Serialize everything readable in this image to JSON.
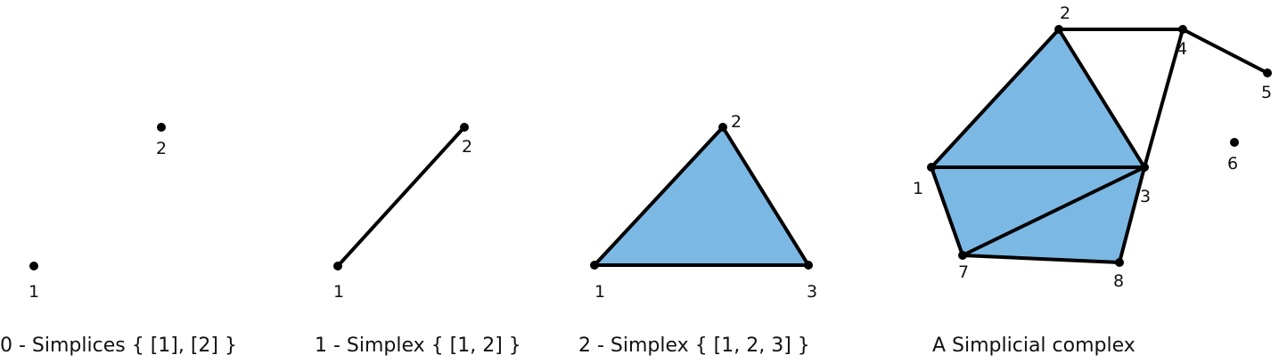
{
  "colors": {
    "face_fill": "#7cb8e4",
    "stroke": "#000000",
    "background": "#ffffff"
  },
  "captions": {
    "zero_simplices": "0 - Simplices { [1], [2] }",
    "one_simplex": "1 - Simplex { [1, 2] }",
    "two_simplex": "2 - Simplex { [1, 2, 3] }",
    "complex": "A Simplicial complex"
  },
  "panels": [
    {
      "id": "p0",
      "vertices": [
        {
          "id": "1",
          "label": "1"
        },
        {
          "id": "2",
          "label": "2"
        }
      ],
      "edges": [],
      "faces": []
    },
    {
      "id": "p1",
      "vertices": [
        {
          "id": "1",
          "label": "1"
        },
        {
          "id": "2",
          "label": "2"
        }
      ],
      "edges": [
        [
          "1",
          "2"
        ]
      ],
      "faces": []
    },
    {
      "id": "p2",
      "vertices": [
        {
          "id": "1",
          "label": "1"
        },
        {
          "id": "2",
          "label": "2"
        },
        {
          "id": "3",
          "label": "3"
        }
      ],
      "edges": [
        [
          "1",
          "2"
        ],
        [
          "2",
          "3"
        ],
        [
          "1",
          "3"
        ]
      ],
      "faces": [
        [
          "1",
          "2",
          "3"
        ]
      ]
    },
    {
      "id": "p3",
      "vertices": [
        {
          "id": "1",
          "label": "1"
        },
        {
          "id": "2",
          "label": "2"
        },
        {
          "id": "3",
          "label": "3"
        },
        {
          "id": "4",
          "label": "4"
        },
        {
          "id": "5",
          "label": "5"
        },
        {
          "id": "6",
          "label": "6"
        },
        {
          "id": "7",
          "label": "7"
        },
        {
          "id": "8",
          "label": "8"
        }
      ],
      "edges": [
        [
          "1",
          "2"
        ],
        [
          "2",
          "3"
        ],
        [
          "1",
          "3"
        ],
        [
          "2",
          "4"
        ],
        [
          "4",
          "3"
        ],
        [
          "4",
          "5"
        ],
        [
          "1",
          "7"
        ],
        [
          "7",
          "3"
        ],
        [
          "7",
          "8"
        ],
        [
          "8",
          "3"
        ]
      ],
      "faces": [
        [
          "1",
          "2",
          "3"
        ],
        [
          "1",
          "3",
          "7"
        ],
        [
          "3",
          "7",
          "8"
        ]
      ]
    }
  ]
}
